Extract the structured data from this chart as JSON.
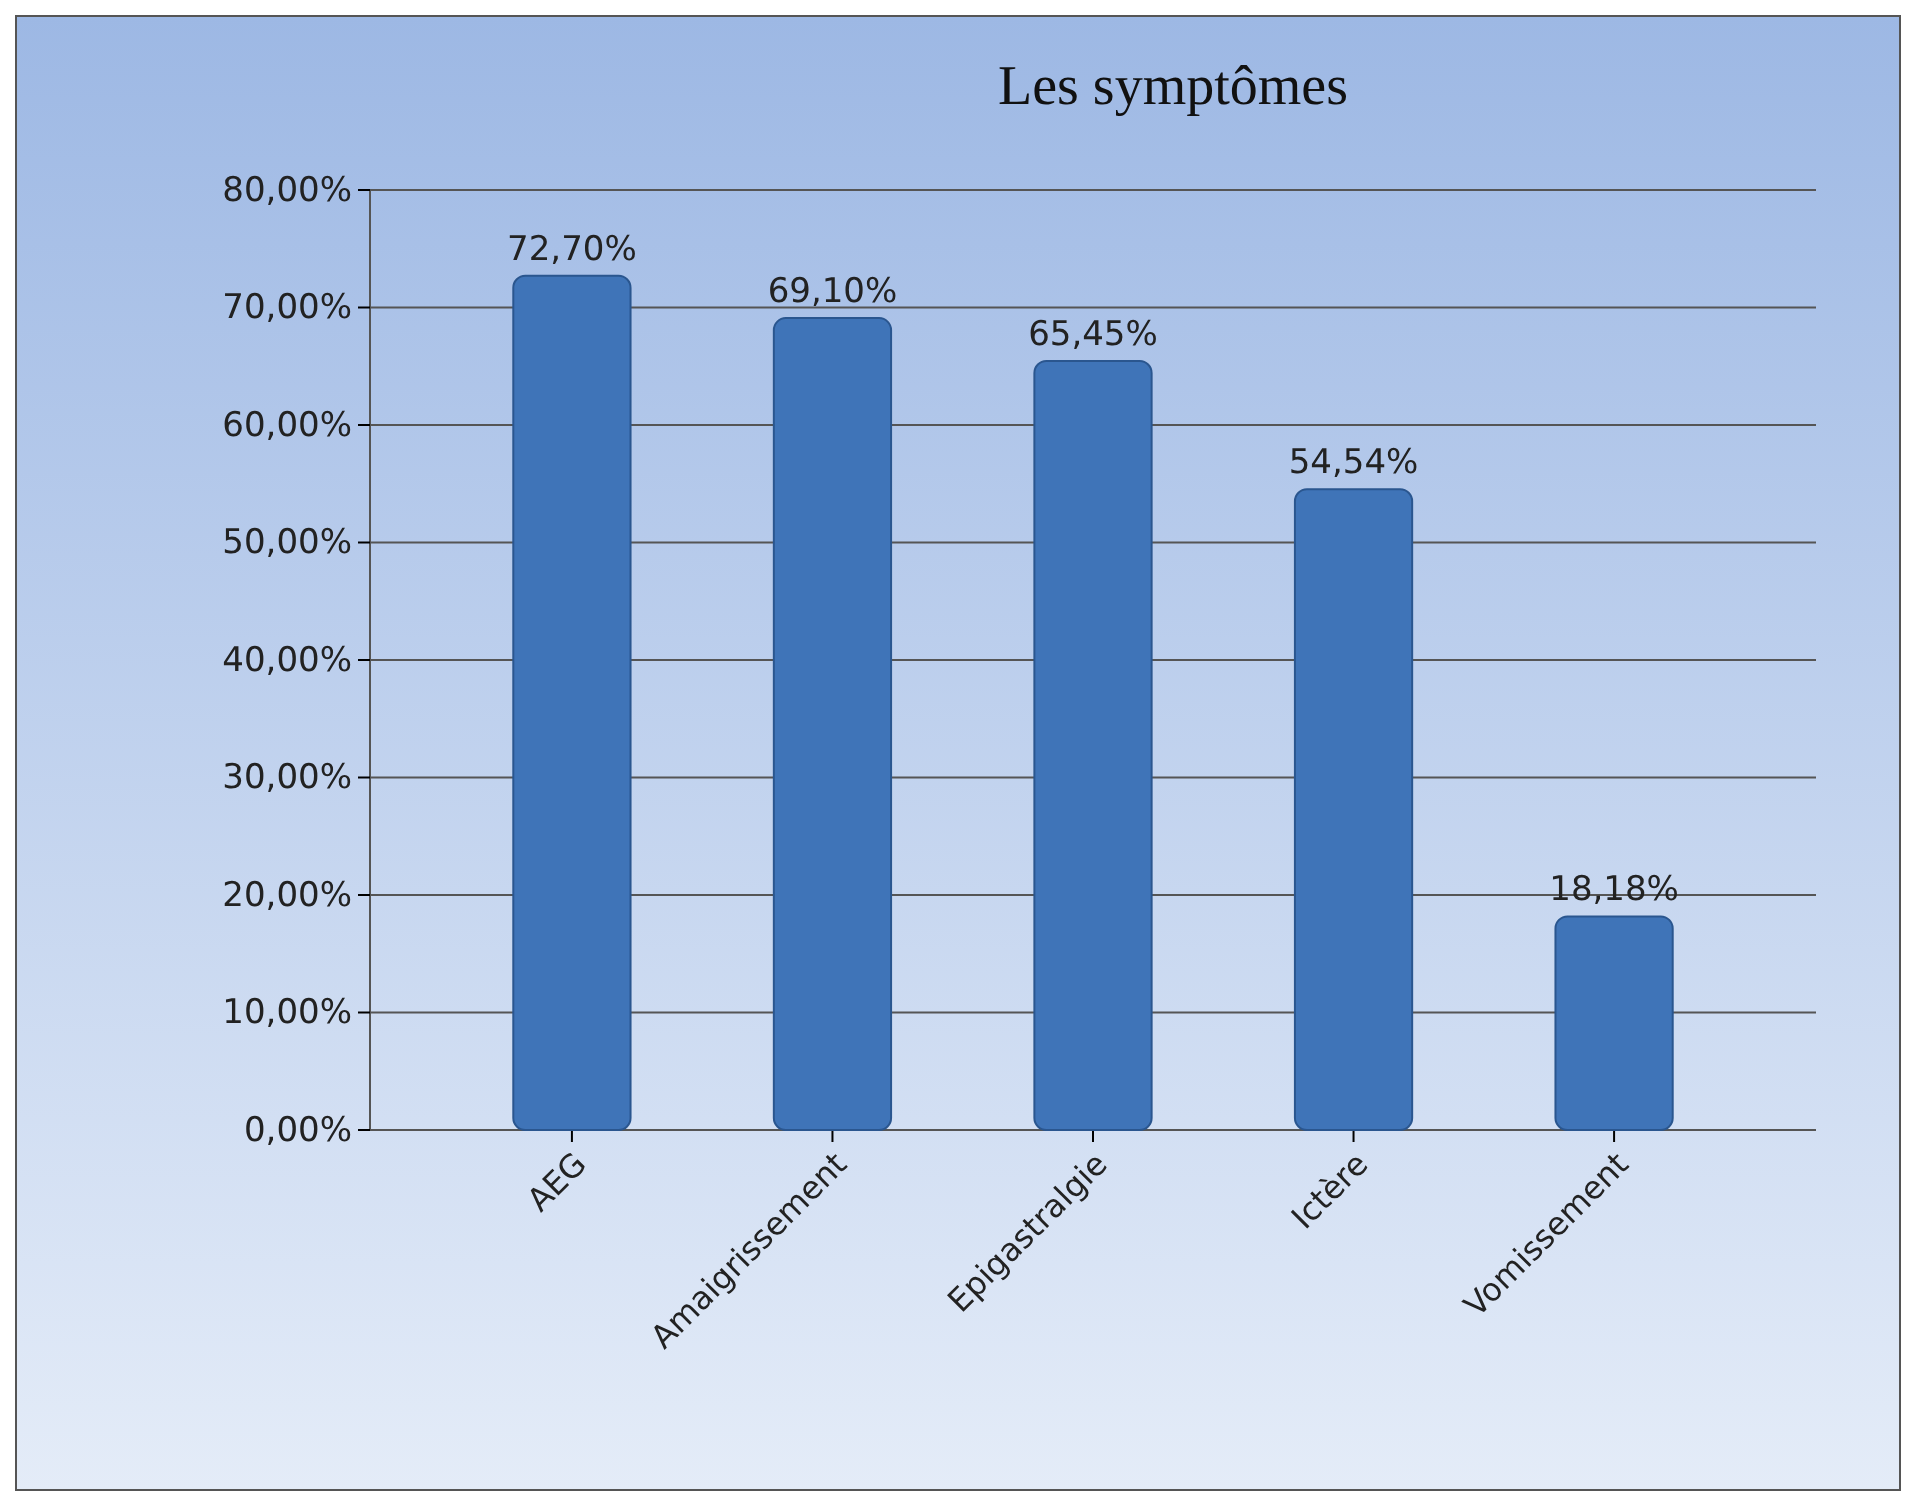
{
  "chart_data": {
    "type": "bar",
    "title": "Les symptômes",
    "categories": [
      "AEG",
      "Amaigrissement",
      "Epigastralgie",
      "Ictère",
      "Vomissement"
    ],
    "values": [
      72.7,
      69.1,
      65.45,
      54.54,
      18.18
    ],
    "value_labels": [
      "72,70%",
      "69,10%",
      "65,45%",
      "54,54%",
      "18,18%"
    ],
    "color": "#3f74b8",
    "ylim": [
      0,
      80
    ],
    "yticks": [
      {
        "value": 0,
        "label": "0,00%"
      },
      {
        "value": 10,
        "label": "10,00%"
      },
      {
        "value": 20,
        "label": "20,00%"
      },
      {
        "value": 30,
        "label": "30,00%"
      },
      {
        "value": 40,
        "label": "40,00%"
      },
      {
        "value": 50,
        "label": "50,00%"
      },
      {
        "value": 60,
        "label": "60,00%"
      },
      {
        "value": 70,
        "label": "70,00%"
      },
      {
        "value": 80,
        "label": "80,00%"
      }
    ],
    "grid": "y"
  }
}
